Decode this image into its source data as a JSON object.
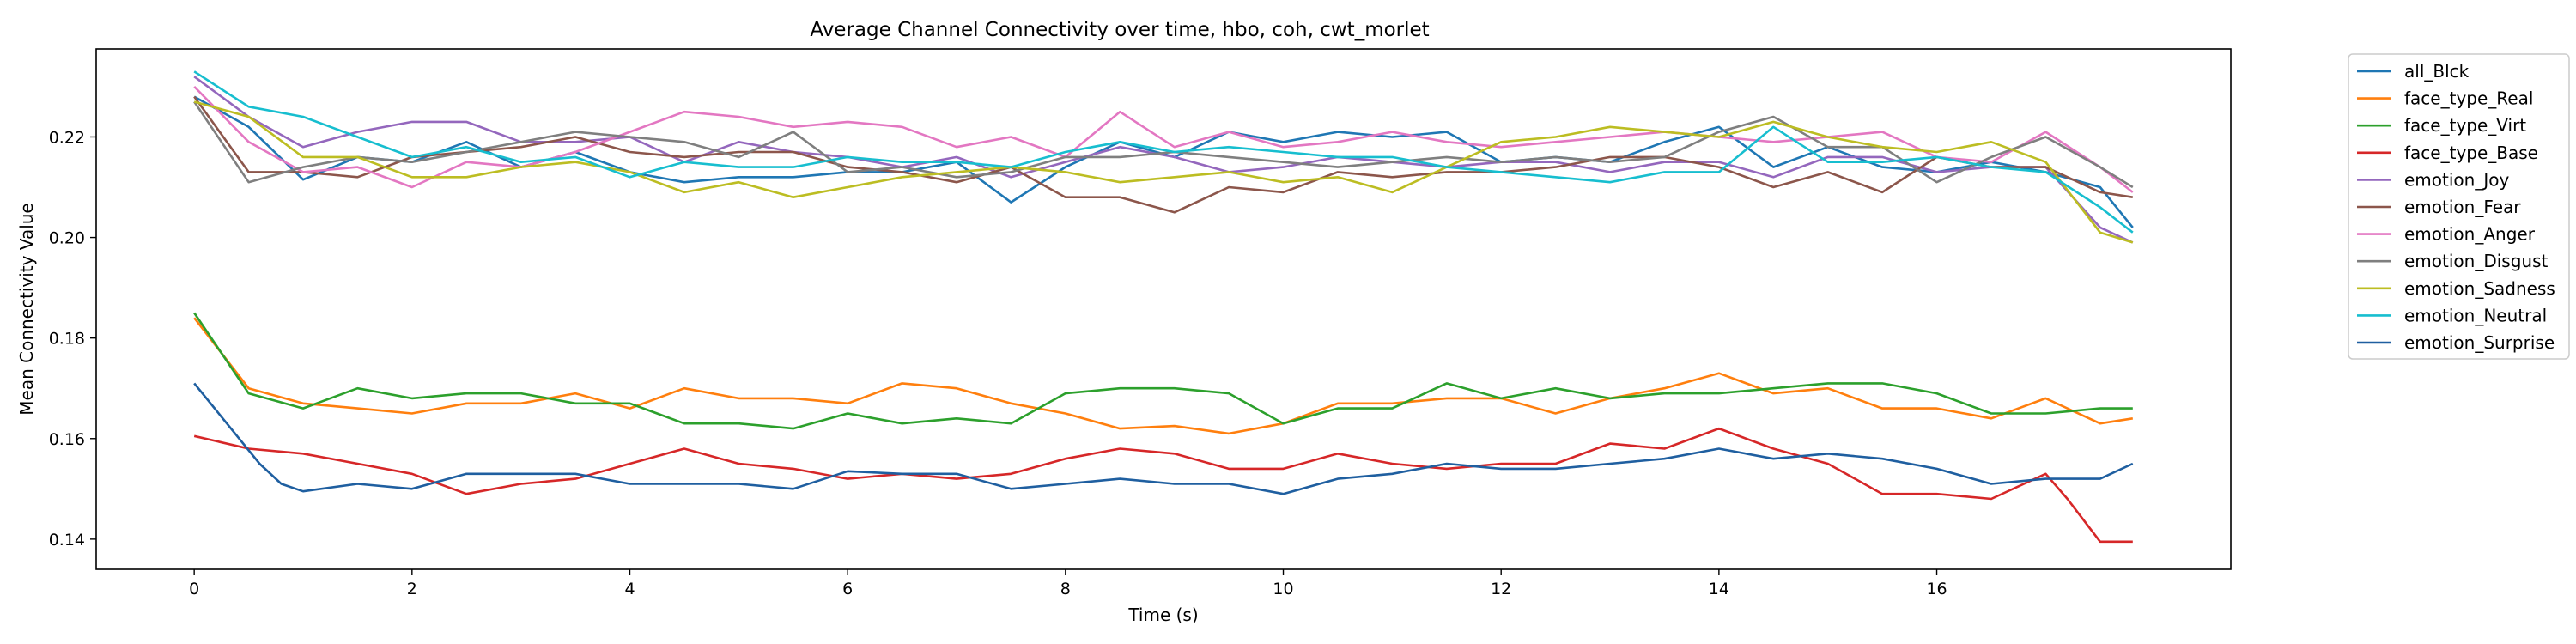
{
  "chart_data": {
    "type": "line",
    "title": "Average Channel Connectivity over time, hbo, coh, cwt_morlet",
    "xlabel": "Time (s)",
    "ylabel": "Mean Connectivity Value",
    "xlim": [
      -0.9,
      18.7
    ],
    "ylim": [
      0.134,
      0.2375
    ],
    "xticks": [
      0,
      2,
      4,
      6,
      8,
      10,
      12,
      14,
      16
    ],
    "yticks": [
      0.14,
      0.16,
      0.18,
      0.2,
      0.22
    ],
    "ytick_labels": [
      "0.14",
      "0.16",
      "0.18",
      "0.20",
      "0.22"
    ],
    "grid": false,
    "legend_position": "outside-right-top",
    "series": [
      {
        "name": "all_Blck",
        "color": "#1f77b4",
        "x": [
          0,
          0.5,
          1,
          1.5,
          2,
          2.5,
          3,
          3.5,
          4,
          4.5,
          5,
          5.5,
          6,
          6.5,
          7,
          7.5,
          8,
          8.5,
          9,
          9.5,
          10,
          10.5,
          11,
          11.5,
          12,
          12.5,
          13,
          13.5,
          14,
          14.5,
          15,
          15.5,
          16,
          16.5,
          17,
          17.5,
          17.8
        ],
        "y": [
          0.228,
          0.222,
          0.2115,
          0.216,
          0.215,
          0.219,
          0.214,
          0.217,
          0.213,
          0.211,
          0.212,
          0.212,
          0.213,
          0.213,
          0.215,
          0.207,
          0.214,
          0.219,
          0.216,
          0.221,
          0.219,
          0.221,
          0.22,
          0.221,
          0.215,
          0.216,
          0.215,
          0.219,
          0.222,
          0.214,
          0.218,
          0.214,
          0.213,
          0.215,
          0.213,
          0.21,
          0.202
        ]
      },
      {
        "name": "face_type_Real",
        "color": "#ff7f0e",
        "x": [
          0,
          0.5,
          1,
          1.5,
          2,
          2.5,
          3,
          3.5,
          4,
          4.5,
          5,
          5.5,
          6,
          6.5,
          7,
          7.5,
          8,
          8.5,
          9,
          9.5,
          10,
          10.5,
          11,
          11.5,
          12,
          12.5,
          13,
          13.5,
          14,
          14.5,
          15,
          15.5,
          16,
          16.5,
          17,
          17.5,
          17.8
        ],
        "y": [
          0.184,
          0.17,
          0.167,
          0.166,
          0.165,
          0.167,
          0.167,
          0.169,
          0.166,
          0.17,
          0.168,
          0.168,
          0.167,
          0.171,
          0.17,
          0.167,
          0.165,
          0.162,
          0.1625,
          0.161,
          0.163,
          0.167,
          0.167,
          0.168,
          0.168,
          0.165,
          0.168,
          0.17,
          0.173,
          0.169,
          0.17,
          0.166,
          0.166,
          0.164,
          0.168,
          0.163,
          0.164
        ]
      },
      {
        "name": "face_type_Virt",
        "color": "#2ca02c",
        "x": [
          0,
          0.5,
          1,
          1.5,
          2,
          2.5,
          3,
          3.5,
          4,
          4.5,
          5,
          5.5,
          6,
          6.5,
          7,
          7.5,
          8,
          8.5,
          9,
          9.5,
          10,
          10.5,
          11,
          11.5,
          12,
          12.5,
          13,
          13.5,
          14,
          14.5,
          15,
          15.5,
          16,
          16.5,
          17,
          17.5,
          17.8
        ],
        "y": [
          0.185,
          0.169,
          0.166,
          0.17,
          0.168,
          0.169,
          0.169,
          0.167,
          0.167,
          0.163,
          0.163,
          0.162,
          0.165,
          0.163,
          0.164,
          0.163,
          0.169,
          0.17,
          0.17,
          0.169,
          0.163,
          0.166,
          0.166,
          0.171,
          0.168,
          0.17,
          0.168,
          0.169,
          0.169,
          0.17,
          0.171,
          0.171,
          0.169,
          0.165,
          0.165,
          0.166,
          0.166
        ]
      },
      {
        "name": "face_type_Base",
        "color": "#d62728",
        "x": [
          0,
          0.5,
          1,
          1.5,
          2,
          2.5,
          3,
          3.5,
          4,
          4.5,
          5,
          5.5,
          6,
          6.5,
          7,
          7.5,
          8,
          8.5,
          9,
          9.5,
          10,
          10.5,
          11,
          11.5,
          12,
          12.5,
          13,
          13.5,
          14,
          14.5,
          15,
          15.5,
          16,
          16.5,
          17,
          17.2,
          17.5,
          17.8
        ],
        "y": [
          0.1605,
          0.158,
          0.157,
          0.155,
          0.153,
          0.149,
          0.151,
          0.152,
          0.155,
          0.158,
          0.155,
          0.154,
          0.152,
          0.153,
          0.152,
          0.153,
          0.156,
          0.158,
          0.157,
          0.154,
          0.154,
          0.157,
          0.155,
          0.154,
          0.155,
          0.155,
          0.159,
          0.158,
          0.162,
          0.158,
          0.155,
          0.149,
          0.149,
          0.148,
          0.153,
          0.148,
          0.1395,
          0.1395
        ]
      },
      {
        "name": "emotion_Joy",
        "color": "#9467bd",
        "x": [
          0,
          0.5,
          1,
          1.5,
          2,
          2.5,
          3,
          3.5,
          4,
          4.5,
          5,
          5.5,
          6,
          6.5,
          7,
          7.5,
          8,
          8.5,
          9,
          9.5,
          10,
          10.5,
          11,
          11.5,
          12,
          12.5,
          13,
          13.5,
          14,
          14.5,
          15,
          15.5,
          16,
          16.5,
          17,
          17.5,
          17.8
        ],
        "y": [
          0.232,
          0.224,
          0.218,
          0.221,
          0.223,
          0.223,
          0.219,
          0.219,
          0.22,
          0.215,
          0.219,
          0.217,
          0.216,
          0.214,
          0.216,
          0.212,
          0.215,
          0.218,
          0.216,
          0.213,
          0.214,
          0.216,
          0.215,
          0.214,
          0.215,
          0.215,
          0.213,
          0.215,
          0.215,
          0.212,
          0.216,
          0.216,
          0.213,
          0.214,
          0.214,
          0.202,
          0.199
        ]
      },
      {
        "name": "emotion_Fear",
        "color": "#8c564b",
        "x": [
          0,
          0.5,
          1,
          1.5,
          2,
          2.5,
          3,
          3.5,
          4,
          4.5,
          5,
          5.5,
          6,
          6.5,
          7,
          7.5,
          8,
          8.5,
          9,
          9.5,
          10,
          10.5,
          11,
          11.5,
          12,
          12.5,
          13,
          13.5,
          14,
          14.5,
          15,
          15.5,
          16,
          16.5,
          17,
          17.5,
          17.8
        ],
        "y": [
          0.228,
          0.213,
          0.213,
          0.212,
          0.216,
          0.217,
          0.218,
          0.22,
          0.217,
          0.216,
          0.217,
          0.217,
          0.214,
          0.213,
          0.211,
          0.214,
          0.208,
          0.208,
          0.205,
          0.21,
          0.209,
          0.213,
          0.212,
          0.213,
          0.213,
          0.214,
          0.216,
          0.216,
          0.214,
          0.21,
          0.213,
          0.209,
          0.216,
          0.214,
          0.214,
          0.209,
          0.208
        ]
      },
      {
        "name": "emotion_Anger",
        "color": "#e377c2",
        "x": [
          0,
          0.5,
          1,
          1.5,
          2,
          2.5,
          3,
          3.5,
          4,
          4.5,
          5,
          5.5,
          6,
          6.5,
          7,
          7.5,
          8,
          8.5,
          9,
          9.5,
          10,
          10.5,
          11,
          11.5,
          12,
          12.5,
          13,
          13.5,
          14,
          14.5,
          15,
          15.5,
          16,
          16.5,
          17,
          17.5,
          17.8
        ],
        "y": [
          0.23,
          0.219,
          0.213,
          0.214,
          0.21,
          0.215,
          0.214,
          0.217,
          0.221,
          0.225,
          0.224,
          0.222,
          0.223,
          0.222,
          0.218,
          0.22,
          0.216,
          0.225,
          0.218,
          0.221,
          0.218,
          0.219,
          0.221,
          0.219,
          0.218,
          0.219,
          0.22,
          0.221,
          0.22,
          0.219,
          0.22,
          0.221,
          0.216,
          0.215,
          0.221,
          0.214,
          0.209
        ]
      },
      {
        "name": "emotion_Disgust",
        "color": "#7f7f7f",
        "x": [
          0,
          0.5,
          1,
          1.5,
          2,
          2.5,
          3,
          3.5,
          4,
          4.5,
          5,
          5.5,
          6,
          6.5,
          7,
          7.5,
          8,
          8.5,
          9,
          9.5,
          10,
          10.5,
          11,
          11.5,
          12,
          12.5,
          13,
          13.5,
          14,
          14.5,
          15,
          15.5,
          16,
          16.5,
          17,
          17.5,
          17.8
        ],
        "y": [
          0.227,
          0.211,
          0.214,
          0.216,
          0.215,
          0.217,
          0.219,
          0.221,
          0.22,
          0.219,
          0.216,
          0.221,
          0.213,
          0.214,
          0.212,
          0.213,
          0.216,
          0.216,
          0.217,
          0.216,
          0.215,
          0.214,
          0.215,
          0.216,
          0.215,
          0.216,
          0.215,
          0.216,
          0.221,
          0.224,
          0.218,
          0.218,
          0.211,
          0.216,
          0.22,
          0.214,
          0.21
        ]
      },
      {
        "name": "emotion_Sadness",
        "color": "#bcbd22",
        "x": [
          0,
          0.5,
          1,
          1.5,
          2,
          2.5,
          3,
          3.5,
          4,
          4.5,
          5,
          5.5,
          6,
          6.5,
          7,
          7.5,
          8,
          8.5,
          9,
          9.5,
          10,
          10.5,
          11,
          11.5,
          12,
          12.5,
          13,
          13.5,
          14,
          14.5,
          15,
          15.5,
          16,
          16.5,
          17,
          17.5,
          17.8
        ],
        "y": [
          0.227,
          0.224,
          0.216,
          0.216,
          0.212,
          0.212,
          0.214,
          0.215,
          0.213,
          0.209,
          0.211,
          0.208,
          0.21,
          0.212,
          0.213,
          0.214,
          0.213,
          0.211,
          0.212,
          0.213,
          0.211,
          0.212,
          0.209,
          0.214,
          0.219,
          0.22,
          0.222,
          0.221,
          0.22,
          0.223,
          0.22,
          0.218,
          0.217,
          0.219,
          0.215,
          0.201,
          0.199
        ]
      },
      {
        "name": "emotion_Neutral",
        "color": "#17becf",
        "x": [
          0,
          0.5,
          1,
          1.5,
          2,
          2.5,
          3,
          3.5,
          4,
          4.5,
          5,
          5.5,
          6,
          6.5,
          7,
          7.5,
          8,
          8.5,
          9,
          9.5,
          10,
          10.5,
          11,
          11.5,
          12,
          12.5,
          13,
          13.5,
          14,
          14.5,
          15,
          15.5,
          16,
          16.5,
          17,
          17.5,
          17.8
        ],
        "y": [
          0.233,
          0.226,
          0.224,
          0.22,
          0.216,
          0.218,
          0.215,
          0.216,
          0.212,
          0.215,
          0.214,
          0.214,
          0.216,
          0.215,
          0.215,
          0.214,
          0.217,
          0.219,
          0.217,
          0.218,
          0.217,
          0.216,
          0.216,
          0.214,
          0.213,
          0.212,
          0.211,
          0.213,
          0.213,
          0.222,
          0.215,
          0.215,
          0.216,
          0.214,
          0.213,
          0.206,
          0.201
        ]
      },
      {
        "name": "emotion_Surprise",
        "color": "#1f5fa0",
        "x": [
          0,
          0.3,
          0.6,
          0.8,
          1,
          1.5,
          2,
          2.5,
          3,
          3.5,
          4,
          4.5,
          5,
          5.5,
          6,
          6.5,
          7,
          7.5,
          8,
          8.5,
          9,
          9.5,
          10,
          10.5,
          11,
          11.5,
          12,
          12.5,
          13,
          13.5,
          14,
          14.5,
          15,
          15.5,
          16,
          16.5,
          17,
          17.5,
          17.8
        ],
        "y": [
          0.171,
          0.163,
          0.155,
          0.151,
          0.1495,
          0.151,
          0.15,
          0.153,
          0.153,
          0.153,
          0.151,
          0.151,
          0.151,
          0.15,
          0.1535,
          0.153,
          0.153,
          0.15,
          0.151,
          0.152,
          0.151,
          0.151,
          0.149,
          0.152,
          0.153,
          0.155,
          0.154,
          0.154,
          0.155,
          0.156,
          0.158,
          0.156,
          0.157,
          0.156,
          0.154,
          0.151,
          0.152,
          0.152,
          0.155
        ]
      }
    ]
  }
}
